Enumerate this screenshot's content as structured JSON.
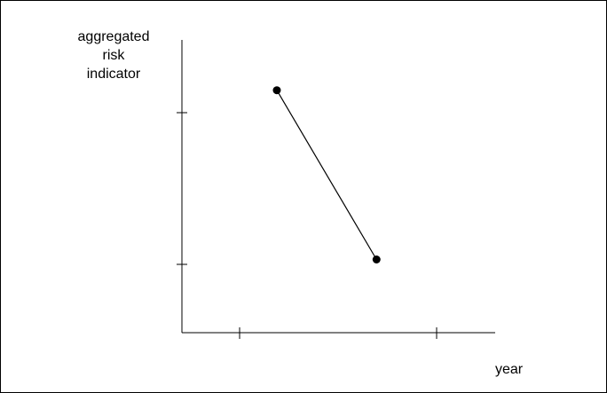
{
  "chart_data": {
    "type": "line",
    "ylabel": [
      "aggregated",
      "risk",
      "indicator"
    ],
    "xlabel": "year",
    "x_ticks": 2,
    "y_ticks": 2,
    "xlim": [
      0,
      3.3
    ],
    "ylim": [
      0,
      3.2
    ],
    "series": [
      {
        "x": [
          1,
          2.05
        ],
        "y": [
          2.65,
          0.8
        ]
      }
    ],
    "grid": false,
    "legend": "none"
  }
}
